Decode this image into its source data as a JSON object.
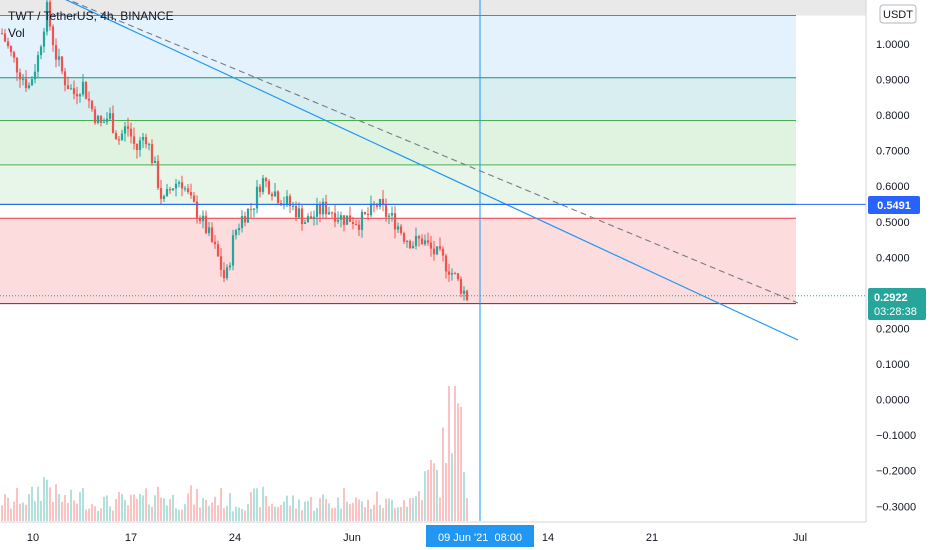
{
  "header": {
    "symbol_title": "TWT / TetherUS, 4h, BINANCE",
    "volume_label": "Vol",
    "currency_badge": "USDT"
  },
  "price_tags": {
    "level_price": "0.5491",
    "last_price": "0.2922",
    "countdown": "03:28:38"
  },
  "crosshair_date_label": "09 Jun '21  08:00",
  "colors": {
    "up": "#26a69a",
    "down": "#ef5350",
    "trendline": "#2196f3",
    "level_line": "#2962ff"
  },
  "chart_data": {
    "type": "candlestick",
    "title": "TWT / TetherUS, 4h, BINANCE",
    "y_ticks": [
      "1.0000",
      "0.9000",
      "0.8000",
      "0.7000",
      "0.6000",
      "0.5000",
      "0.4000",
      "0.3000",
      "0.2000",
      "0.1000",
      "0.0000",
      "−0.1000",
      "−0.2000",
      "−0.3000"
    ],
    "y_tick_values": [
      1.0,
      0.9,
      0.8,
      0.7,
      0.6,
      0.5,
      0.4,
      0.3,
      0.2,
      0.1,
      0.0,
      -0.1,
      -0.2,
      -0.3
    ],
    "ylim": [
      -0.33,
      1.12
    ],
    "x_ticks": [
      "10",
      "17",
      "24",
      "Jun",
      "14",
      "21",
      "Jul"
    ],
    "fib_levels": [
      1.08,
      0.905,
      0.785,
      0.66,
      0.549,
      0.51,
      0.27
    ],
    "zones": [
      {
        "from": 1.08,
        "to": 0.905,
        "color": "#e3f2fd"
      },
      {
        "from": 0.905,
        "to": 0.785,
        "color": "#d8eef0"
      },
      {
        "from": 0.785,
        "to": 0.66,
        "color": "#e0f2e0"
      },
      {
        "from": 0.66,
        "to": 0.549,
        "color": "#e8f5e9"
      },
      {
        "from": 0.51,
        "to": 0.27,
        "color": "#fcdcdc"
      }
    ],
    "level_line": 0.5491,
    "last_price": 0.2922,
    "close_path": [
      1.03,
      0.97,
      0.92,
      0.88,
      0.96,
      1.1,
      0.97,
      0.9,
      0.86,
      0.89,
      0.82,
      0.77,
      0.8,
      0.73,
      0.77,
      0.7,
      0.75,
      0.66,
      0.55,
      0.6,
      0.62,
      0.56,
      0.52,
      0.47,
      0.41,
      0.33,
      0.47,
      0.52,
      0.54,
      0.62,
      0.6,
      0.57,
      0.55,
      0.53,
      0.5,
      0.52,
      0.54,
      0.53,
      0.51,
      0.51,
      0.5,
      0.52,
      0.55,
      0.52,
      0.5,
      0.46,
      0.44,
      0.45,
      0.42,
      0.4,
      0.37,
      0.33,
      0.29
    ],
    "volume_path": [
      0.05,
      0.04,
      0.06,
      0.05,
      0.07,
      0.1,
      0.06,
      0.05,
      0.05,
      0.06,
      0.04,
      0.05,
      0.04,
      0.05,
      0.04,
      0.05,
      0.05,
      0.07,
      0.06,
      0.05,
      0.05,
      0.06,
      0.05,
      0.04,
      0.06,
      0.05,
      0.04,
      0.05,
      0.05,
      0.06,
      0.04,
      0.04,
      0.05,
      0.04,
      0.05,
      0.04,
      0.05,
      0.04,
      0.05,
      0.08,
      0.04,
      0.04,
      0.05,
      0.04,
      0.05,
      0.05,
      0.05,
      0.08,
      0.12,
      0.1,
      0.28,
      0.25,
      0.08
    ]
  }
}
